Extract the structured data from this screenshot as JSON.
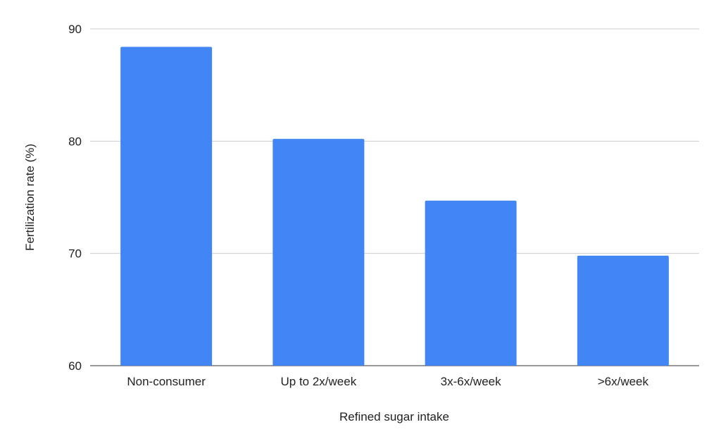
{
  "chart_data": {
    "type": "bar",
    "categories": [
      "Non-consumer",
      "Up to 2x/week",
      "3x-6x/week",
      ">6x/week"
    ],
    "values": [
      88.4,
      80.2,
      74.7,
      69.8
    ],
    "xlabel": "Refined sugar intake",
    "ylabel": "Fertilization rate (%)",
    "ylim": [
      60,
      90
    ],
    "yticks": [
      "60",
      "70",
      "80",
      "90"
    ],
    "grid": true,
    "legend": "none",
    "bar_color": "#4285f4"
  }
}
